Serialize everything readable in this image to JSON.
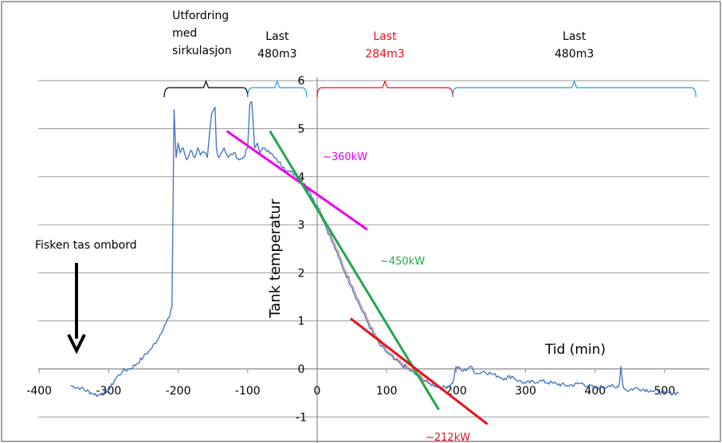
{
  "chart_data": {
    "type": "line",
    "xlabel": "Tid (min)",
    "ylabel": "Tank temperatur",
    "xlim": [
      -400,
      560
    ],
    "ylim": [
      -1.3,
      6
    ],
    "x_ticks": [
      -400,
      -300,
      -200,
      -100,
      0,
      100,
      200,
      300,
      400,
      500
    ],
    "y_ticks": [
      -1,
      0,
      1,
      2,
      3,
      4,
      5,
      6
    ],
    "grid": "horizontal",
    "series": [
      {
        "color": "#4a78c2",
        "x": [
          -355,
          -340,
          -325,
          -315,
          -300,
          -290,
          -280,
          -270,
          -260,
          -250,
          -240,
          -230,
          -220,
          -212,
          -209,
          -206,
          -203,
          -200,
          -197,
          -193,
          -188,
          -182,
          -176,
          -172,
          -168,
          -162,
          -158,
          -152,
          -147,
          -145,
          -142,
          -138,
          -134,
          -128,
          -120,
          -112,
          -106,
          -100,
          -97,
          -94,
          -90,
          -86,
          -82,
          -76,
          -70,
          -62,
          -55,
          -48,
          -40,
          -32,
          -25,
          -18,
          -12,
          -6,
          0,
          10,
          20,
          30,
          40,
          50,
          60,
          70,
          80,
          90,
          100,
          110,
          120,
          130,
          140,
          150,
          160,
          170,
          180,
          190,
          195,
          200,
          210,
          220,
          230,
          240,
          250,
          260,
          270,
          280,
          290,
          300,
          320,
          340,
          360,
          380,
          400,
          420,
          430,
          435,
          437,
          440,
          445,
          460,
          480,
          500,
          520
        ],
        "values": [
          -0.35,
          -0.4,
          -0.5,
          -0.55,
          -0.45,
          -0.2,
          -0.05,
          0.0,
          0.1,
          0.25,
          0.4,
          0.6,
          0.9,
          1.1,
          1.3,
          5.4,
          4.4,
          4.7,
          4.5,
          4.6,
          4.35,
          4.55,
          4.4,
          4.6,
          4.45,
          4.5,
          4.4,
          5.3,
          5.45,
          4.6,
          4.4,
          4.5,
          4.6,
          4.4,
          4.5,
          4.35,
          4.4,
          4.6,
          5.5,
          5.55,
          4.6,
          4.7,
          4.5,
          4.6,
          4.55,
          4.4,
          4.3,
          4.2,
          4.1,
          4.05,
          3.95,
          3.85,
          3.7,
          3.55,
          3.4,
          3.05,
          2.7,
          2.35,
          2.0,
          1.7,
          1.35,
          1.05,
          0.75,
          0.5,
          0.35,
          0.2,
          0.1,
          0.0,
          -0.1,
          -0.2,
          -0.3,
          -0.35,
          -0.4,
          -0.35,
          -0.3,
          0.05,
          -0.05,
          0.05,
          -0.1,
          -0.05,
          -0.1,
          -0.15,
          -0.2,
          -0.15,
          -0.25,
          -0.3,
          -0.25,
          -0.3,
          -0.35,
          -0.3,
          -0.4,
          -0.35,
          -0.4,
          -0.3,
          0.05,
          -0.35,
          -0.45,
          -0.4,
          -0.45,
          -0.5,
          -0.5
        ]
      }
    ],
    "trend_lines": [
      {
        "label": "~360kW",
        "color": "#ee00ee",
        "x": [
          -130,
          72
        ],
        "y": [
          4.95,
          2.9
        ]
      },
      {
        "label": "~450kW",
        "color": "#1fa84a",
        "x": [
          -68,
          175
        ],
        "y": [
          4.95,
          -0.85
        ]
      },
      {
        "label": "~212kW",
        "color": "#e8101a",
        "x": [
          48,
          245
        ],
        "y": [
          1.05,
          -1.15
        ]
      }
    ],
    "braces": [
      {
        "label": [
          "Utfordring",
          "med",
          "sirkulasjon"
        ],
        "color": "#000000",
        "x": [
          -220,
          -100
        ]
      },
      {
        "label": [
          "Last",
          "480m3"
        ],
        "color": "#1aa0d8",
        "x": [
          -100,
          -15
        ]
      },
      {
        "label": [
          "Last",
          "284m3"
        ],
        "color": "#e8101a",
        "x": [
          0,
          195
        ]
      },
      {
        "label": [
          "Last",
          "480m3"
        ],
        "color": "#1aa0d8",
        "x": [
          195,
          545
        ]
      }
    ],
    "annotations": [
      {
        "text": "Fisken tas ombord"
      }
    ]
  }
}
